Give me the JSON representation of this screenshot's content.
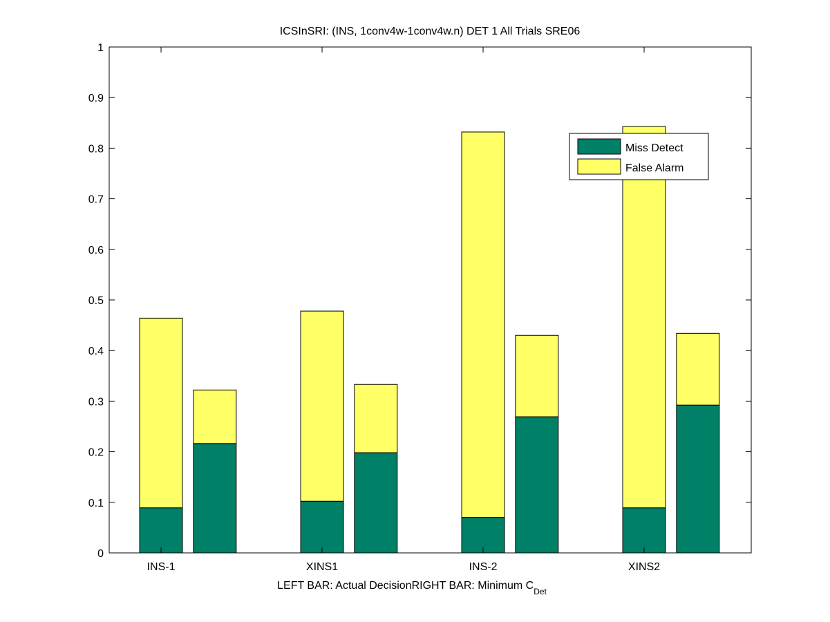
{
  "chart_data": {
    "type": "bar",
    "stacked": true,
    "title": "ICSInSRI: (INS, 1conv4w-1conv4w.n) DET 1 All Trials SRE06",
    "xlabel_left": "LEFT BAR: Actual Decision",
    "xlabel_right": "RIGHT BAR: Minimum C",
    "xlabel_right_subscript": "Det",
    "ylabel": "",
    "ylim": [
      0,
      1
    ],
    "yticks": [
      "0",
      "0.1",
      "0.2",
      "0.3",
      "0.4",
      "0.5",
      "0.6",
      "0.7",
      "0.8",
      "0.9",
      "1"
    ],
    "categories": [
      "INS-1",
      "XINS1",
      "INS-2",
      "XINS2"
    ],
    "bars": [
      {
        "category": "INS-1",
        "position": "left",
        "miss_detect": 0.089,
        "total": 0.464
      },
      {
        "category": "INS-1",
        "position": "right",
        "miss_detect": 0.216,
        "total": 0.322
      },
      {
        "category": "XINS1",
        "position": "left",
        "miss_detect": 0.102,
        "total": 0.478
      },
      {
        "category": "XINS1",
        "position": "right",
        "miss_detect": 0.198,
        "total": 0.333
      },
      {
        "category": "INS-2",
        "position": "left",
        "miss_detect": 0.07,
        "total": 0.832
      },
      {
        "category": "INS-2",
        "position": "right",
        "miss_detect": 0.269,
        "total": 0.43
      },
      {
        "category": "XINS2",
        "position": "left",
        "miss_detect": 0.089,
        "total": 0.843
      },
      {
        "category": "XINS2",
        "position": "right",
        "miss_detect": 0.292,
        "total": 0.434
      }
    ],
    "legend": {
      "placement": "top-right",
      "entries": [
        {
          "label": "Miss Detect",
          "color": "#008066"
        },
        {
          "label": "False Alarm",
          "color": "#ffff66"
        }
      ]
    },
    "grid": false
  }
}
